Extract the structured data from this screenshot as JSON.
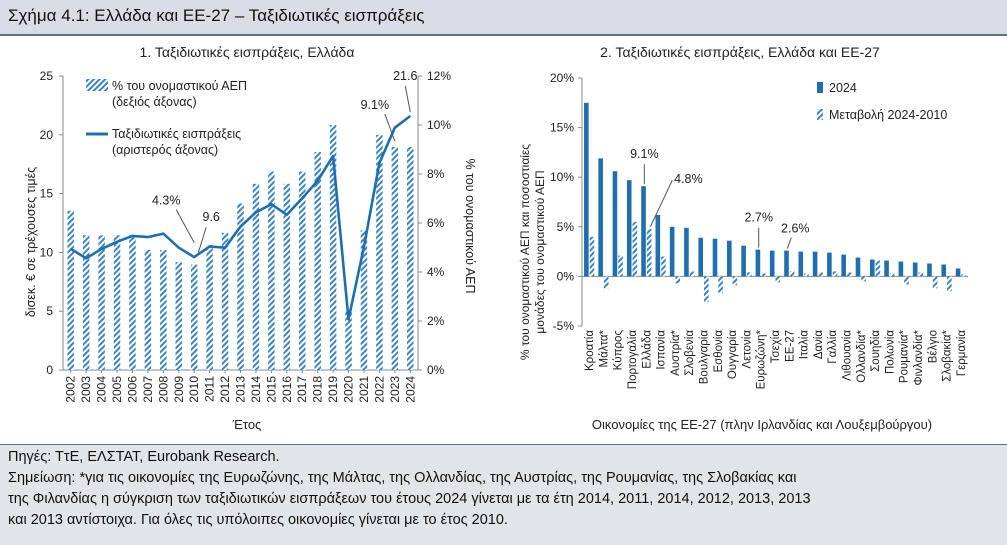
{
  "header": {
    "title": "Σχήμα 4.1: Ελλάδα και ΕΕ-27 – Ταξιδιωτικές εισπράξεις"
  },
  "colors": {
    "bar": "#1f6fb0",
    "line": "#1f6fb0",
    "hatch": "#3a84c3",
    "header_bg": "#d8dde3",
    "notes_bg": "#e1e5ea"
  },
  "chart_data": [
    {
      "type": "bar+line",
      "title": "1. Ταξιδιωτικές εισπράξεις, Ελλάδα",
      "xlabel": "Έτος",
      "ylabel_left": "δισεκ. € σε τρέχουσες τιμές",
      "ylabel_right": "% του ονομαστικού ΑΕΠ",
      "ylim_left": [
        0,
        25
      ],
      "ylim_right": [
        0,
        12
      ],
      "yticks_left": [
        "0",
        "5",
        "10",
        "15",
        "20",
        "25"
      ],
      "yticks_right": [
        "0%",
        "2%",
        "4%",
        "6%",
        "8%",
        "10%",
        "12%"
      ],
      "categories": [
        "2002",
        "2003",
        "2004",
        "2005",
        "2006",
        "2007",
        "2008",
        "2009",
        "2010",
        "2011",
        "2012",
        "2013",
        "2014",
        "2015",
        "2016",
        "2017",
        "2018",
        "2019",
        "2020",
        "2021",
        "2022",
        "2023",
        "2024"
      ],
      "series": [
        {
          "name": "% του ονομαστικού ΑΕΠ",
          "name2": "(δεξιός άξονας)",
          "style": "hatched-bar",
          "axis": "right",
          "values": [
            6.5,
            5.5,
            5.5,
            5.5,
            5.5,
            4.9,
            4.9,
            4.4,
            4.3,
            5.1,
            5.6,
            6.8,
            7.6,
            8.1,
            7.6,
            8.1,
            8.9,
            10.0,
            2.4,
            5.7,
            9.6,
            9.1,
            9.1
          ]
        },
        {
          "name": "Ταξιδιωτικές εισπράξεις",
          "name2": "(αριστερός άξονας)",
          "style": "line",
          "axis": "left",
          "values": [
            10.3,
            9.5,
            10.3,
            10.9,
            11.4,
            11.3,
            11.6,
            10.4,
            9.6,
            10.5,
            10.4,
            12.2,
            13.4,
            14.1,
            13.2,
            14.6,
            16.1,
            18.2,
            4.3,
            10.5,
            17.6,
            20.6,
            21.6
          ]
        }
      ],
      "annotations": [
        {
          "text": "4.3%",
          "year": "2010"
        },
        {
          "text": "9.6",
          "year": "2010"
        },
        {
          "text": "9.1%",
          "year": "2023"
        },
        {
          "text": "21.6",
          "year": "2024"
        }
      ]
    },
    {
      "type": "bar",
      "title": "2. Ταξιδιωτικές εισπράξεις, Ελλάδα και ΕΕ-27",
      "xlabel": "Οικονομίες της ΕΕ-27 (πλην Ιρλανδίας και Λουξεμβούργου)",
      "ylabel": [
        "% του ονομαστικού ΑΕΠ και ποσοστιαίες",
        "μονάδες του ονομαστικού ΑΕΠ"
      ],
      "ylim": [
        -5,
        20
      ],
      "yticks": [
        "-5%",
        "0%",
        "5%",
        "10%",
        "15%",
        "20%"
      ],
      "categories": [
        "Κροατία",
        "Μάλτα*",
        "Κύπρος",
        "Πορτογαλία",
        "Ελλάδα",
        "Ισπανία",
        "Αυστρία*",
        "Σλοβενία",
        "Βουλγαρία",
        "Εσθονία",
        "Ουγγαρία",
        "Λετονία",
        "Ευρωζώνη*",
        "Τσεχία",
        "ΕΕ-27",
        "Ιταλία",
        "Δανία",
        "Γαλλία",
        "Λιθουανία",
        "Ολλανδία*",
        "Σουηδία",
        "Πολωνία",
        "Ρουμανία*",
        "Φινλανδία*",
        "Βέλγιο",
        "Σλοβακία*",
        "Γερμανία"
      ],
      "series": [
        {
          "name": "2024",
          "style": "solid-bar",
          "values": [
            17.5,
            11.9,
            10.6,
            9.7,
            9.1,
            6.2,
            5.0,
            4.9,
            3.9,
            3.8,
            3.6,
            3.1,
            2.7,
            2.6,
            2.6,
            2.5,
            2.5,
            2.4,
            2.2,
            1.9,
            1.7,
            1.6,
            1.5,
            1.4,
            1.3,
            1.2,
            0.8
          ]
        },
        {
          "name": "Μεταβολή 2024-2010",
          "style": "hatched-bar",
          "values": [
            4.0,
            -1.2,
            2.1,
            5.5,
            4.8,
            2.0,
            -0.7,
            0.5,
            -2.6,
            -1.7,
            -0.9,
            0.4,
            0.3,
            -0.6,
            0.5,
            0.3,
            0.4,
            0.5,
            0.4,
            -0.5,
            1.6,
            0.3,
            -0.8,
            0.4,
            -1.2,
            -1.5,
            0.2
          ]
        }
      ],
      "annotations": [
        {
          "text": "9.1%",
          "category": "Ελλάδα"
        },
        {
          "text": "4.8%",
          "category": "Ελλάδα"
        },
        {
          "text": "2.7%",
          "category": "Ευρωζώνη*"
        },
        {
          "text": "2.6%",
          "category": "ΕΕ-27"
        }
      ]
    }
  ],
  "notes": {
    "source": "Πηγές: ΤτΕ, ΕΛΣΤΑΤ, Eurobank Research.",
    "note_line1": "Σημείωση: *για τις οικονομίες της Ευρωζώνης, της Μάλτας, της Ολλανδίας, της Αυστρίας, της Ρουμανίας, της Σλοβακίας και",
    "note_line2": "της Φιλανδίας η σύγκριση των ταξιδιωτικών εισπράξεων του έτους 2024 γίνεται με τα έτη 2014, 2011, 2014, 2012, 2013, 2013",
    "note_line3": "και 2013 αντίστοιχα. Για όλες τις υπόλοιπες οικονομίες γίνεται με το έτος 2010."
  }
}
